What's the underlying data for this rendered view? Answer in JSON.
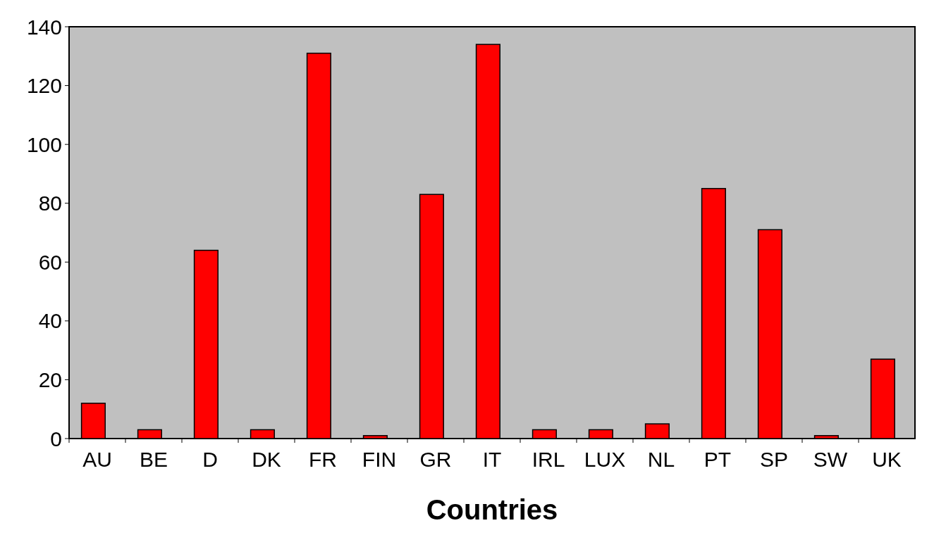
{
  "chart_data": {
    "type": "bar",
    "xlabel": "Countries",
    "categories": [
      "AU",
      "BE",
      "D",
      "DK",
      "FR",
      "FIN",
      "GR",
      "IT",
      "IRL",
      "LUX",
      "NL",
      "PT",
      "SP",
      "SW",
      "UK"
    ],
    "values": [
      12,
      3,
      64,
      3,
      131,
      1,
      83,
      134,
      3,
      3,
      5,
      85,
      71,
      1,
      27
    ],
    "color": "#ff0000",
    "ylim": [
      0,
      140
    ],
    "yticks": [
      0,
      20,
      40,
      60,
      80,
      100,
      120,
      140
    ],
    "grid": false
  }
}
